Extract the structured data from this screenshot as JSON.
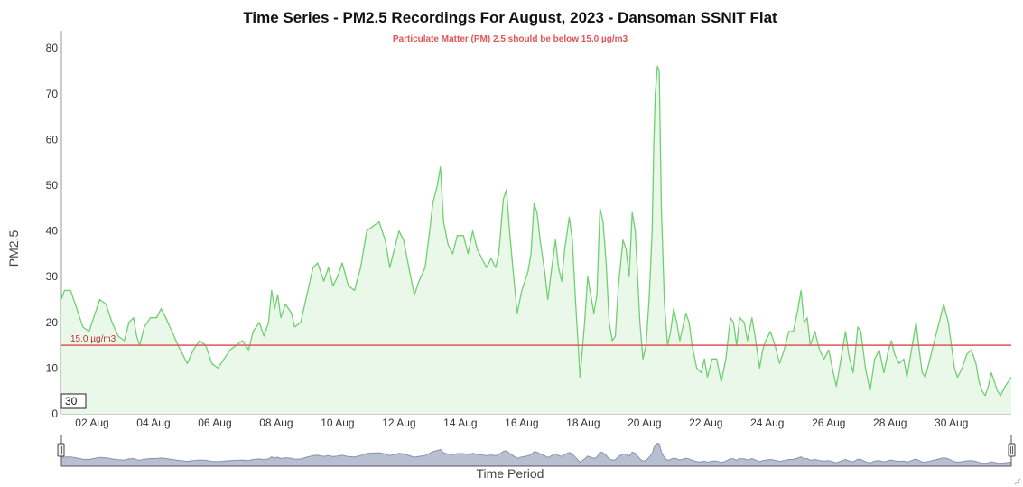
{
  "chart_data": {
    "type": "area",
    "title": "Time Series - PM2.5 Recordings For August, 2023 - Dansoman SSNIT Flat",
    "subtitle": "Particulate Matter (PM) 2.5 should be below 15.0 µg/m3",
    "xlabel": "Time Period",
    "ylabel": "PM2.5",
    "x_start": "2023-08-01",
    "x_end": "2023-08-31",
    "xlim_days": [
      1,
      31.95
    ],
    "ylim": [
      0,
      83
    ],
    "y_ticks": [
      0,
      10,
      20,
      30,
      40,
      50,
      60,
      70,
      80
    ],
    "x_ticks": [
      {
        "day": 2,
        "label": "02 Aug"
      },
      {
        "day": 4,
        "label": "04 Aug"
      },
      {
        "day": 6,
        "label": "06 Aug"
      },
      {
        "day": 8,
        "label": "08 Aug"
      },
      {
        "day": 10,
        "label": "10 Aug"
      },
      {
        "day": 12,
        "label": "12 Aug"
      },
      {
        "day": 14,
        "label": "14 Aug"
      },
      {
        "day": 16,
        "label": "16 Aug"
      },
      {
        "day": 18,
        "label": "18 Aug"
      },
      {
        "day": 20,
        "label": "20 Aug"
      },
      {
        "day": 22,
        "label": "22 Aug"
      },
      {
        "day": 24,
        "label": "24 Aug"
      },
      {
        "day": 26,
        "label": "26 Aug"
      },
      {
        "day": 28,
        "label": "28 Aug"
      },
      {
        "day": 30,
        "label": "30 Aug"
      }
    ],
    "threshold": {
      "value": 15.0,
      "label": "15.0 µg/m3",
      "color": "#e05555"
    },
    "rolling_period": "30",
    "grid": false,
    "legend": "none",
    "series": [
      {
        "color": "#6fd06f",
        "fill": "#e9f8e9",
        "points": [
          [
            1.0,
            25
          ],
          [
            1.1,
            27
          ],
          [
            1.3,
            27
          ],
          [
            1.5,
            23
          ],
          [
            1.7,
            19
          ],
          [
            1.9,
            18
          ],
          [
            2.05,
            21
          ],
          [
            2.25,
            25
          ],
          [
            2.45,
            24
          ],
          [
            2.65,
            20
          ],
          [
            2.85,
            17
          ],
          [
            3.05,
            16
          ],
          [
            3.2,
            20
          ],
          [
            3.35,
            21
          ],
          [
            3.45,
            17
          ],
          [
            3.55,
            15
          ],
          [
            3.7,
            19
          ],
          [
            3.9,
            21
          ],
          [
            4.1,
            21
          ],
          [
            4.25,
            23
          ],
          [
            4.4,
            21
          ],
          [
            4.6,
            18
          ],
          [
            4.8,
            15
          ],
          [
            4.95,
            13
          ],
          [
            5.1,
            11
          ],
          [
            5.3,
            14
          ],
          [
            5.5,
            16
          ],
          [
            5.7,
            15
          ],
          [
            5.9,
            11
          ],
          [
            6.1,
            10
          ],
          [
            6.3,
            12
          ],
          [
            6.5,
            14
          ],
          [
            6.7,
            15
          ],
          [
            6.9,
            16
          ],
          [
            7.1,
            14
          ],
          [
            7.25,
            18
          ],
          [
            7.45,
            20
          ],
          [
            7.6,
            17
          ],
          [
            7.75,
            20
          ],
          [
            7.85,
            27
          ],
          [
            7.95,
            23
          ],
          [
            8.05,
            26
          ],
          [
            8.15,
            21
          ],
          [
            8.3,
            24
          ],
          [
            8.5,
            22
          ],
          [
            8.6,
            19
          ],
          [
            8.8,
            20
          ],
          [
            9.0,
            26
          ],
          [
            9.2,
            32
          ],
          [
            9.35,
            33
          ],
          [
            9.55,
            29
          ],
          [
            9.7,
            32
          ],
          [
            9.85,
            28
          ],
          [
            10.0,
            30
          ],
          [
            10.15,
            33
          ],
          [
            10.35,
            28
          ],
          [
            10.55,
            27
          ],
          [
            10.75,
            32
          ],
          [
            10.95,
            40
          ],
          [
            11.15,
            41
          ],
          [
            11.35,
            42
          ],
          [
            11.55,
            38
          ],
          [
            11.7,
            32
          ],
          [
            11.85,
            36
          ],
          [
            12.0,
            40
          ],
          [
            12.15,
            38
          ],
          [
            12.35,
            31
          ],
          [
            12.5,
            26
          ],
          [
            12.65,
            29
          ],
          [
            12.85,
            32
          ],
          [
            13.0,
            40
          ],
          [
            13.1,
            46
          ],
          [
            13.25,
            50
          ],
          [
            13.35,
            54
          ],
          [
            13.45,
            42
          ],
          [
            13.6,
            37
          ],
          [
            13.75,
            35
          ],
          [
            13.9,
            39
          ],
          [
            14.1,
            39
          ],
          [
            14.25,
            35
          ],
          [
            14.4,
            40
          ],
          [
            14.55,
            36
          ],
          [
            14.7,
            34
          ],
          [
            14.85,
            32
          ],
          [
            15.0,
            34
          ],
          [
            15.15,
            32
          ],
          [
            15.25,
            35
          ],
          [
            15.4,
            47
          ],
          [
            15.5,
            49
          ],
          [
            15.6,
            40
          ],
          [
            15.75,
            29
          ],
          [
            15.85,
            22
          ],
          [
            16.0,
            27
          ],
          [
            16.2,
            31
          ],
          [
            16.3,
            35
          ],
          [
            16.4,
            46
          ],
          [
            16.5,
            44
          ],
          [
            16.6,
            38
          ],
          [
            16.75,
            31
          ],
          [
            16.85,
            25
          ],
          [
            17.0,
            33
          ],
          [
            17.1,
            38
          ],
          [
            17.2,
            32
          ],
          [
            17.3,
            29
          ],
          [
            17.4,
            36
          ],
          [
            17.55,
            43
          ],
          [
            17.65,
            38
          ],
          [
            17.75,
            25
          ],
          [
            17.85,
            14
          ],
          [
            17.9,
            8
          ],
          [
            18.05,
            20
          ],
          [
            18.15,
            30
          ],
          [
            18.25,
            26
          ],
          [
            18.35,
            22
          ],
          [
            18.45,
            26
          ],
          [
            18.55,
            45
          ],
          [
            18.65,
            42
          ],
          [
            18.75,
            33
          ],
          [
            18.85,
            20
          ],
          [
            18.95,
            16
          ],
          [
            19.05,
            17
          ],
          [
            19.15,
            28
          ],
          [
            19.3,
            38
          ],
          [
            19.4,
            36
          ],
          [
            19.5,
            30
          ],
          [
            19.6,
            44
          ],
          [
            19.7,
            40
          ],
          [
            19.85,
            20
          ],
          [
            19.95,
            12
          ],
          [
            20.05,
            15
          ],
          [
            20.15,
            25
          ],
          [
            20.25,
            40
          ],
          [
            20.3,
            58
          ],
          [
            20.35,
            70
          ],
          [
            20.42,
            76
          ],
          [
            20.48,
            75
          ],
          [
            20.55,
            45
          ],
          [
            20.65,
            24
          ],
          [
            20.75,
            15
          ],
          [
            20.85,
            18
          ],
          [
            20.95,
            23
          ],
          [
            21.05,
            20
          ],
          [
            21.15,
            16
          ],
          [
            21.25,
            19
          ],
          [
            21.35,
            22
          ],
          [
            21.45,
            20
          ],
          [
            21.55,
            15
          ],
          [
            21.7,
            10
          ],
          [
            21.85,
            9
          ],
          [
            21.95,
            12
          ],
          [
            22.05,
            8
          ],
          [
            22.2,
            12
          ],
          [
            22.35,
            12
          ],
          [
            22.5,
            7
          ],
          [
            22.65,
            12
          ],
          [
            22.8,
            21
          ],
          [
            22.9,
            20
          ],
          [
            23.0,
            15
          ],
          [
            23.1,
            21
          ],
          [
            23.25,
            20
          ],
          [
            23.35,
            16
          ],
          [
            23.5,
            21
          ],
          [
            23.6,
            17
          ],
          [
            23.75,
            10
          ],
          [
            23.85,
            14
          ],
          [
            23.95,
            16
          ],
          [
            24.1,
            18
          ],
          [
            24.25,
            15
          ],
          [
            24.4,
            11
          ],
          [
            24.55,
            14
          ],
          [
            24.7,
            18
          ],
          [
            24.85,
            18
          ],
          [
            25.0,
            23
          ],
          [
            25.1,
            27
          ],
          [
            25.2,
            20
          ],
          [
            25.3,
            21
          ],
          [
            25.4,
            15
          ],
          [
            25.55,
            18
          ],
          [
            25.7,
            14
          ],
          [
            25.85,
            12
          ],
          [
            26.0,
            14
          ],
          [
            26.15,
            9
          ],
          [
            26.25,
            6
          ],
          [
            26.35,
            10
          ],
          [
            26.55,
            18
          ],
          [
            26.65,
            13
          ],
          [
            26.8,
            9
          ],
          [
            26.95,
            19
          ],
          [
            27.05,
            18
          ],
          [
            27.2,
            10
          ],
          [
            27.35,
            5
          ],
          [
            27.5,
            12
          ],
          [
            27.65,
            14
          ],
          [
            27.8,
            9
          ],
          [
            27.95,
            14
          ],
          [
            28.05,
            16
          ],
          [
            28.15,
            13
          ],
          [
            28.3,
            11
          ],
          [
            28.45,
            12
          ],
          [
            28.55,
            8
          ],
          [
            28.7,
            14
          ],
          [
            28.85,
            20
          ],
          [
            28.95,
            14
          ],
          [
            29.05,
            9
          ],
          [
            29.15,
            8
          ],
          [
            29.3,
            12
          ],
          [
            29.45,
            16
          ],
          [
            29.6,
            20
          ],
          [
            29.75,
            24
          ],
          [
            29.9,
            20
          ],
          [
            30.0,
            15
          ],
          [
            30.1,
            10
          ],
          [
            30.2,
            8
          ],
          [
            30.35,
            10
          ],
          [
            30.5,
            13
          ],
          [
            30.65,
            14
          ],
          [
            30.8,
            11
          ],
          [
            30.9,
            7
          ],
          [
            31.0,
            5
          ],
          [
            31.1,
            4
          ],
          [
            31.2,
            6
          ],
          [
            31.3,
            9
          ],
          [
            31.4,
            7
          ],
          [
            31.5,
            5
          ],
          [
            31.6,
            4
          ],
          [
            31.75,
            6
          ],
          [
            31.85,
            7
          ],
          [
            31.95,
            8
          ]
        ]
      }
    ]
  }
}
